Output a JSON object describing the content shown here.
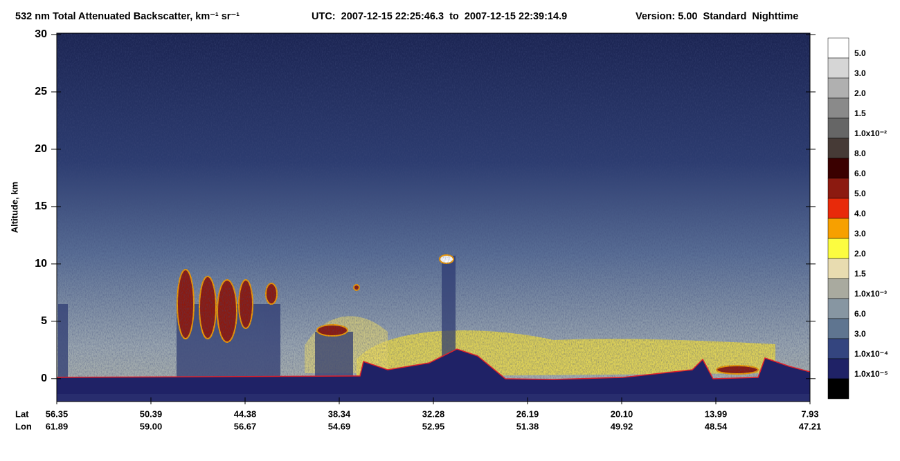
{
  "chart_data": {
    "type": "heatmap",
    "title": "532 nm Total Attenuated Backscatter, km⁻¹ sr⁻¹",
    "subtitle": "UTC:  2007-12-15 22:25:46.3  to  2007-12-15 22:39:14.9",
    "version": "Version: 5.00  Standard  Nighttime",
    "y_label": "Altitude, km",
    "ylim": [
      -2,
      30
    ],
    "yticks": [
      0,
      5,
      10,
      15,
      20,
      25,
      30
    ],
    "x_rows": [
      {
        "name": "Lat",
        "values": [
          "56.35",
          "50.39",
          "44.38",
          "38.34",
          "32.28",
          "26.19",
          "20.10",
          "13.99",
          "7.93"
        ]
      },
      {
        "name": "Lon",
        "values": [
          "61.89",
          "59.00",
          "56.67",
          "54.69",
          "52.95",
          "51.38",
          "49.92",
          "48.54",
          "47.21"
        ]
      }
    ],
    "colorbar": {
      "colors": [
        "#ffffff",
        "#d6d6d6",
        "#b0b0b0",
        "#8a8a8a",
        "#666666",
        "#463a36",
        "#3a0000",
        "#8c1a10",
        "#e82a0a",
        "#f7a000",
        "#fcfc40",
        "#e8dcb0",
        "#a9aa9f",
        "#8796a2",
        "#5f7590",
        "#34457f",
        "#1f2266",
        "#000000"
      ],
      "labels": [
        "5.0",
        "3.0",
        "2.0",
        "1.5",
        "1.0x10⁻²",
        "8.0",
        "6.0",
        "5.0",
        "4.0",
        "3.0",
        "2.0",
        "1.5",
        "1.0x10⁻³",
        "6.0",
        "3.0",
        "1.0x10⁻⁴",
        "1.0x10⁻⁵"
      ]
    }
  }
}
